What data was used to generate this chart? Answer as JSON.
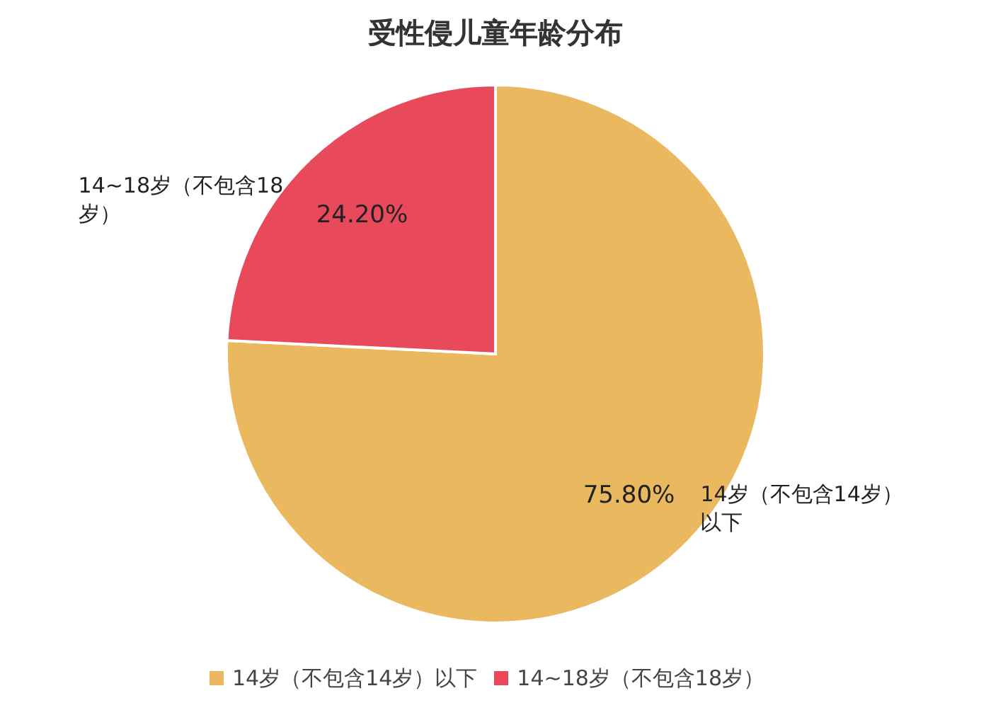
{
  "chart_data": {
    "type": "pie",
    "title": "受性侵儿童年龄分布",
    "categories": [
      "14岁（不包含14岁）以下",
      "14~18岁（不包含18岁）"
    ],
    "values": [
      75.8,
      24.2
    ],
    "value_labels": [
      "75.80%",
      "24.20%"
    ],
    "colors": [
      "#eab85f",
      "#e84a5c"
    ],
    "legend": "bottom"
  }
}
